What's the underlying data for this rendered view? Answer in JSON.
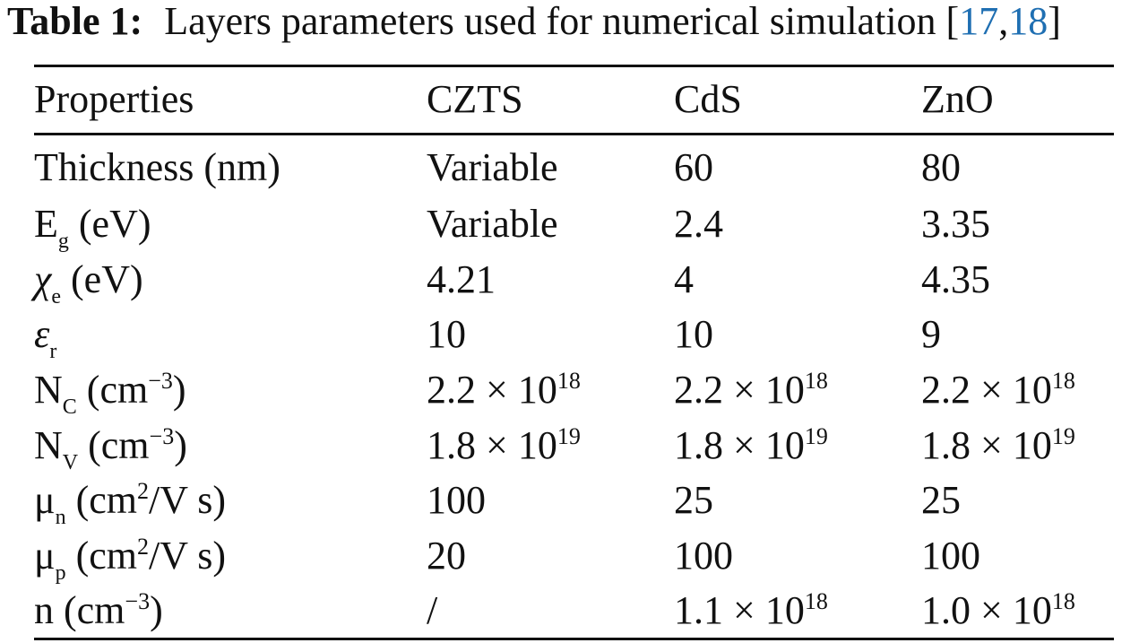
{
  "caption": {
    "label": "Table 1:",
    "text": "Layers parameters used for numerical simulation [",
    "ref1": "17",
    "sep": ",",
    "ref2": "18",
    "close": "]"
  },
  "table": {
    "headers": {
      "properties": "Properties",
      "czts": "CZTS",
      "cds": "CdS",
      "zno": "ZnO"
    },
    "rows": [
      {
        "prop_main": "Thickness (nm)",
        "czts": "Variable",
        "cds": "60",
        "zno": "80"
      },
      {
        "prop_main": "E",
        "prop_sub": "g",
        "prop_tail": " (eV)",
        "czts": "Variable",
        "cds": "2.4",
        "zno": "3.35"
      },
      {
        "prop_main": "χ",
        "prop_sub": "e",
        "prop_tail": " (eV)",
        "czts": "4.21",
        "cds": "4",
        "zno": "4.35"
      },
      {
        "prop_main": "ε",
        "prop_sub": "r",
        "czts": "10",
        "cds": "10",
        "zno": "9"
      },
      {
        "prop_main": "N",
        "prop_sub": "C",
        "prop_tail_pre": " (cm",
        "prop_sup": "−3",
        "prop_tail_post": ")",
        "czts_base": "2.2 × 10",
        "czts_exp": "18",
        "cds_base": "2.2 × 10",
        "cds_exp": "18",
        "zno_base": "2.2 × 10",
        "zno_exp": "18"
      },
      {
        "prop_main": "N",
        "prop_sub": "V",
        "prop_tail_pre": " (cm",
        "prop_sup": "−3",
        "prop_tail_post": ")",
        "czts_base": "1.8 × 10",
        "czts_exp": "19",
        "cds_base": "1.8 × 10",
        "cds_exp": "19",
        "zno_base": "1.8 × 10",
        "zno_exp": "19"
      },
      {
        "prop_main": "μ",
        "prop_sub": "n",
        "prop_tail_pre": " (cm",
        "prop_sup": "2",
        "prop_tail_post": "/V s)",
        "czts": "100",
        "cds": "25",
        "zno": "25"
      },
      {
        "prop_main": "μ",
        "prop_sub": "p",
        "prop_tail_pre": " (cm",
        "prop_sup": "2",
        "prop_tail_post": "/V s)",
        "czts": "20",
        "cds": "100",
        "zno": "100"
      },
      {
        "prop_main": "n (cm",
        "prop_sup": "−3",
        "prop_tail_post": ")",
        "czts": "/",
        "cds_base": "1.1 × 10",
        "cds_exp": "18",
        "zno_base": "1.0 × 10",
        "zno_exp": "18"
      }
    ]
  }
}
